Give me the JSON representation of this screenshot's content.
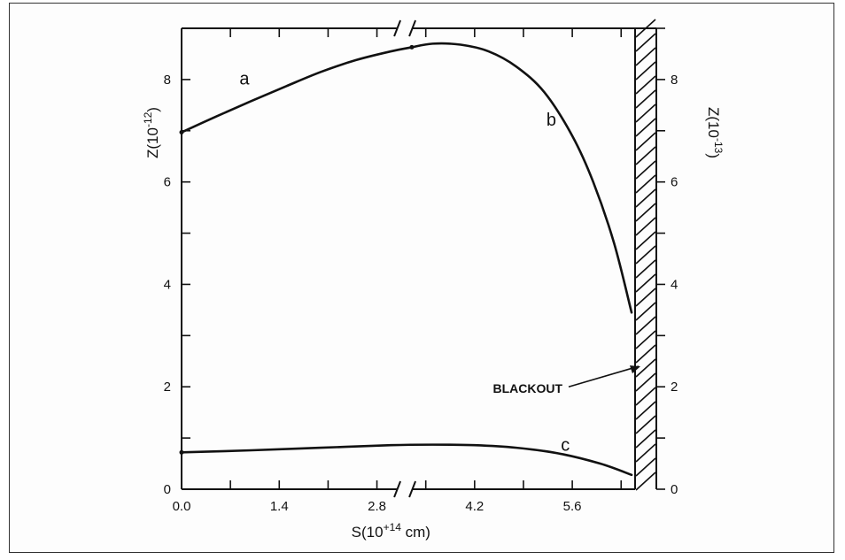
{
  "chart_data": {
    "type": "line",
    "title": "",
    "xlabel": "S(10",
    "xlabel_sup": "+14",
    "xlabel_unit": " cm)",
    "ylabel_left": "Z(10",
    "ylabel_left_sup": "-12",
    "ylabel_right": "Z(10",
    "ylabel_right_sup": "-13",
    "xlim": [
      0,
      6.5
    ],
    "ylim_left": [
      0,
      9
    ],
    "ylim_right": [
      0,
      9
    ],
    "x_break_at": 3.2,
    "x_ticks": [
      0.0,
      1.4,
      2.8,
      4.2,
      5.6
    ],
    "x_tick_labels": [
      "0.0",
      "1.4",
      "2.8",
      "4.2",
      "5.6"
    ],
    "y_ticks": [
      0,
      2,
      4,
      6,
      8
    ],
    "y_tick_labels": [
      "0",
      "2",
      "4",
      "6",
      "8"
    ],
    "annotation": "BLACKOUT",
    "blackout_x": 6.5,
    "grid": false,
    "series": [
      {
        "name": "a",
        "axis": "left",
        "x": [
          0.0,
          0.5,
          1.0,
          1.5,
          2.0,
          2.5,
          3.0,
          3.3
        ],
        "y": [
          6.97,
          7.28,
          7.58,
          7.87,
          8.15,
          8.38,
          8.55,
          8.63
        ]
      },
      {
        "name": "b",
        "axis": "left",
        "x": [
          3.3,
          3.6,
          4.0,
          4.4,
          4.8,
          5.2,
          5.6,
          5.9,
          6.2,
          6.45
        ],
        "y": [
          8.63,
          8.7,
          8.68,
          8.55,
          8.25,
          7.75,
          6.9,
          6.0,
          4.8,
          3.45
        ]
      },
      {
        "name": "c",
        "axis": "right",
        "x": [
          0.0,
          1.0,
          2.0,
          3.0,
          3.6,
          4.2,
          4.8,
          5.4,
          6.0,
          6.45
        ],
        "y": [
          0.72,
          0.76,
          0.81,
          0.86,
          0.87,
          0.86,
          0.81,
          0.7,
          0.5,
          0.28
        ]
      }
    ]
  }
}
